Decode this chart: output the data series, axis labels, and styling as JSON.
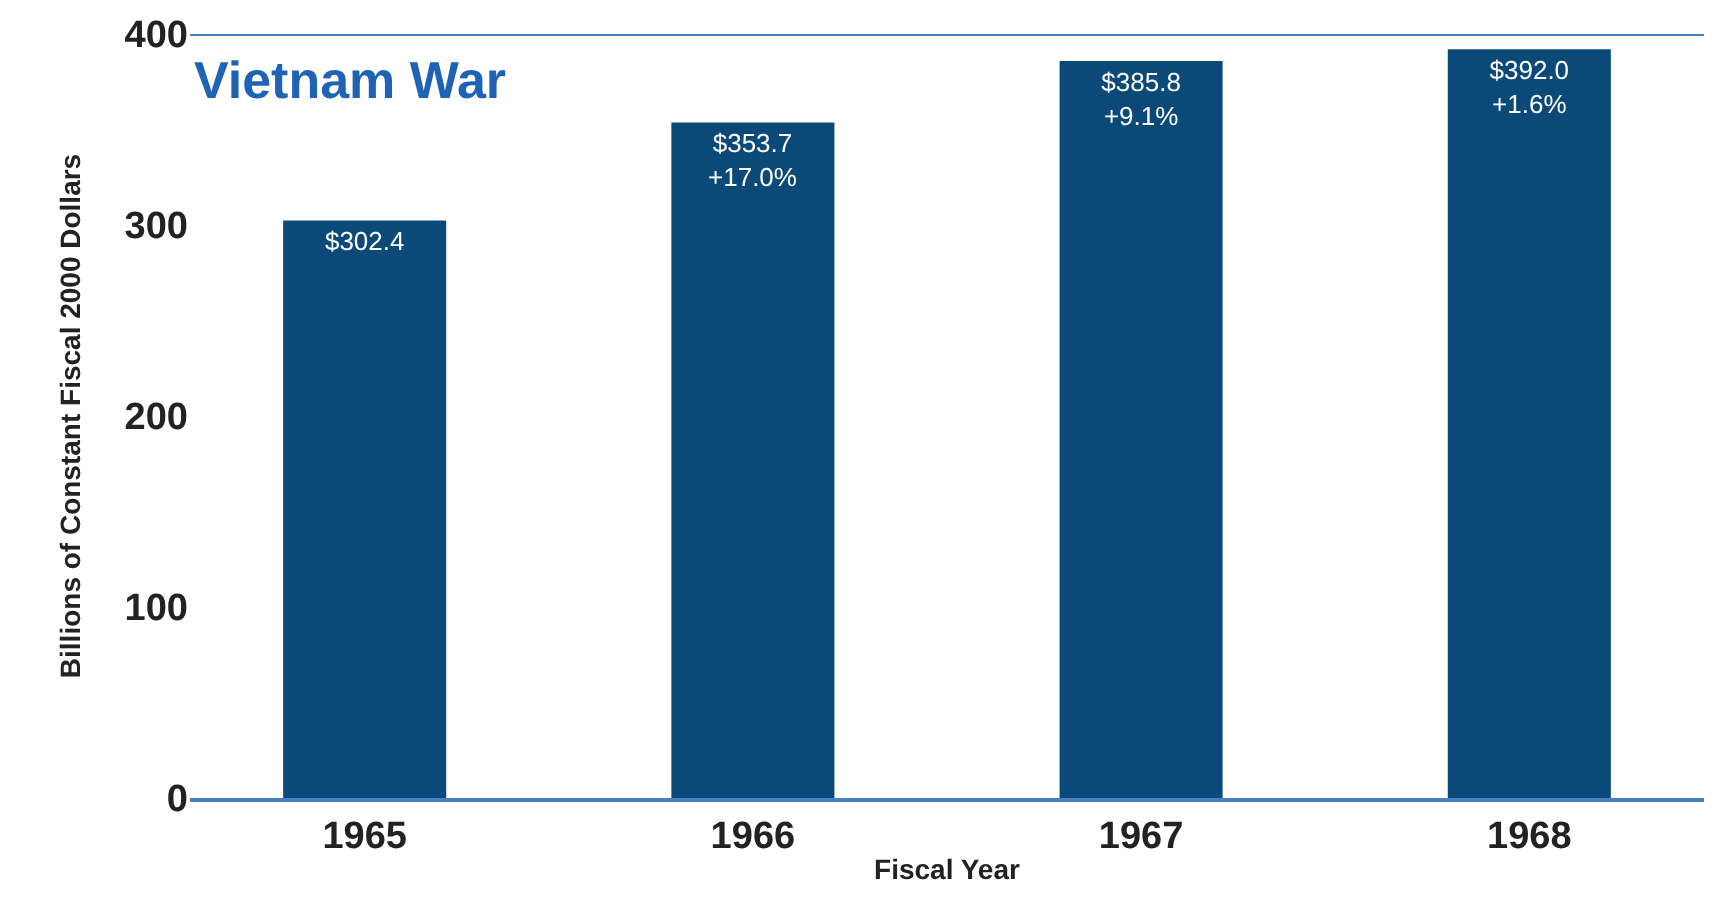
{
  "chart_data": {
    "type": "bar",
    "title": "Vietnam War",
    "xlabel": "Fiscal Year",
    "ylabel": "Billions of Constant Fiscal 2000 Dollars",
    "categories": [
      "1965",
      "1966",
      "1967",
      "1968"
    ],
    "values": [
      302.4,
      353.7,
      385.8,
      392.0
    ],
    "value_labels": [
      "$302.4",
      "$353.7\n+17.0%",
      "$385.8\n+9.1%",
      "$392.0\n+1.6%"
    ],
    "color": "#0b4a78",
    "ylim": [
      0,
      400
    ],
    "yticks": [
      0,
      100,
      200,
      300,
      400
    ],
    "ref_lines": [
      {
        "axis": "y",
        "value": 400,
        "color": "#4a7fc1"
      }
    ]
  }
}
